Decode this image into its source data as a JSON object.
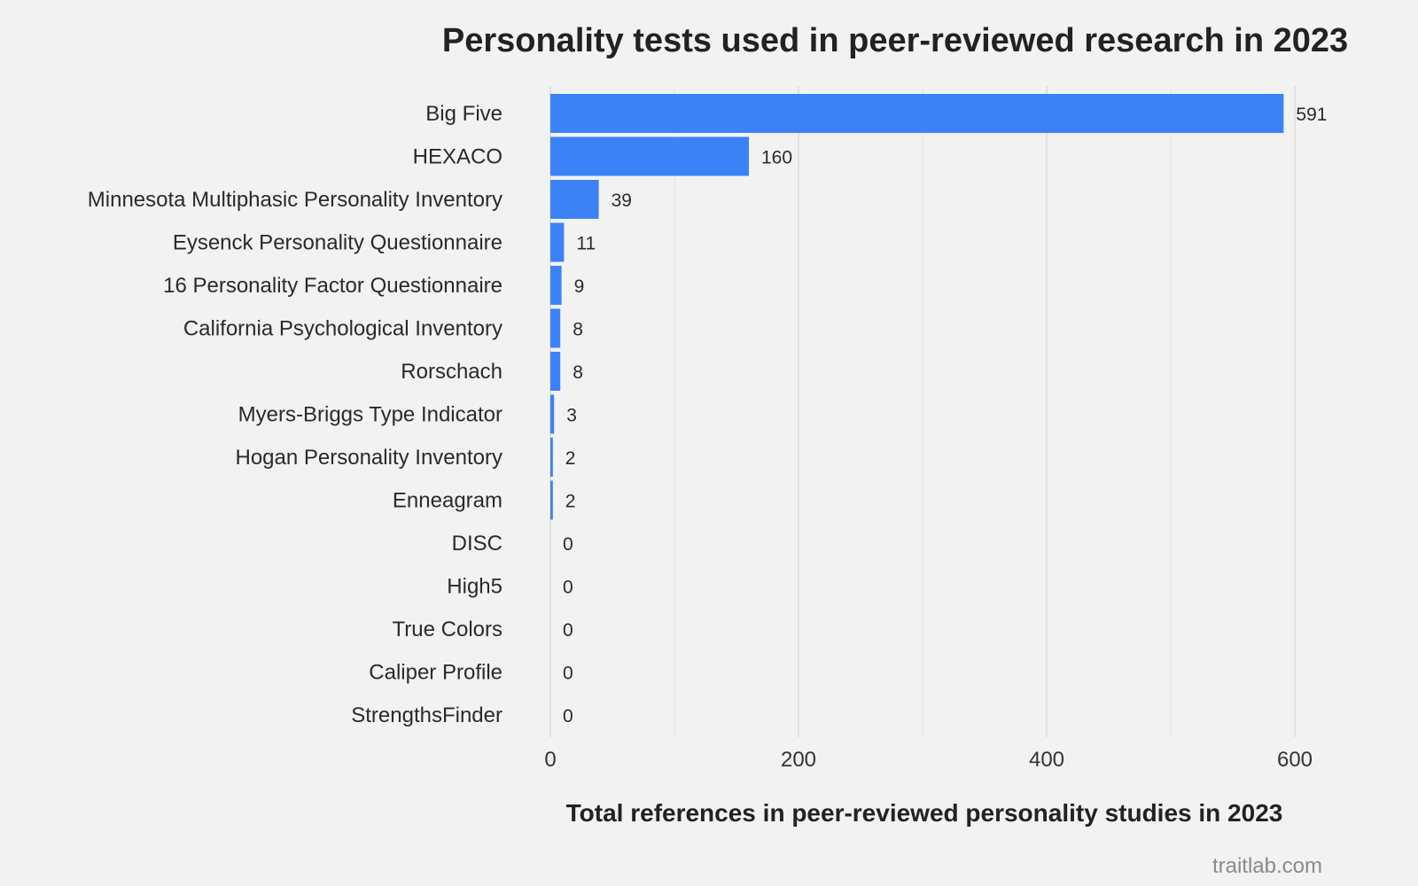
{
  "chart_data": {
    "type": "bar",
    "orientation": "horizontal",
    "title": "Personality tests used in peer-reviewed research in 2023",
    "xlabel": "Total references in peer-reviewed personality studies in 2023",
    "ylabel": "",
    "xlim": [
      0,
      600
    ],
    "xticks": [
      0,
      200,
      400,
      600
    ],
    "grid": true,
    "bar_color": "#3b82f6",
    "categories": [
      "Big Five",
      "HEXACO",
      "Minnesota Multiphasic Personality Inventory",
      "Eysenck Personality Questionnaire",
      "16 Personality Factor Questionnaire",
      "California Psychological Inventory",
      "Rorschach",
      "Myers-Briggs Type Indicator",
      "Hogan Personality Inventory",
      "Enneagram",
      "DISC",
      "High5",
      "True Colors",
      "Caliper Profile",
      "StrengthsFinder"
    ],
    "values": [
      591,
      160,
      39,
      11,
      9,
      8,
      8,
      3,
      2,
      2,
      0,
      0,
      0,
      0,
      0
    ],
    "source": "traitlab.com"
  }
}
